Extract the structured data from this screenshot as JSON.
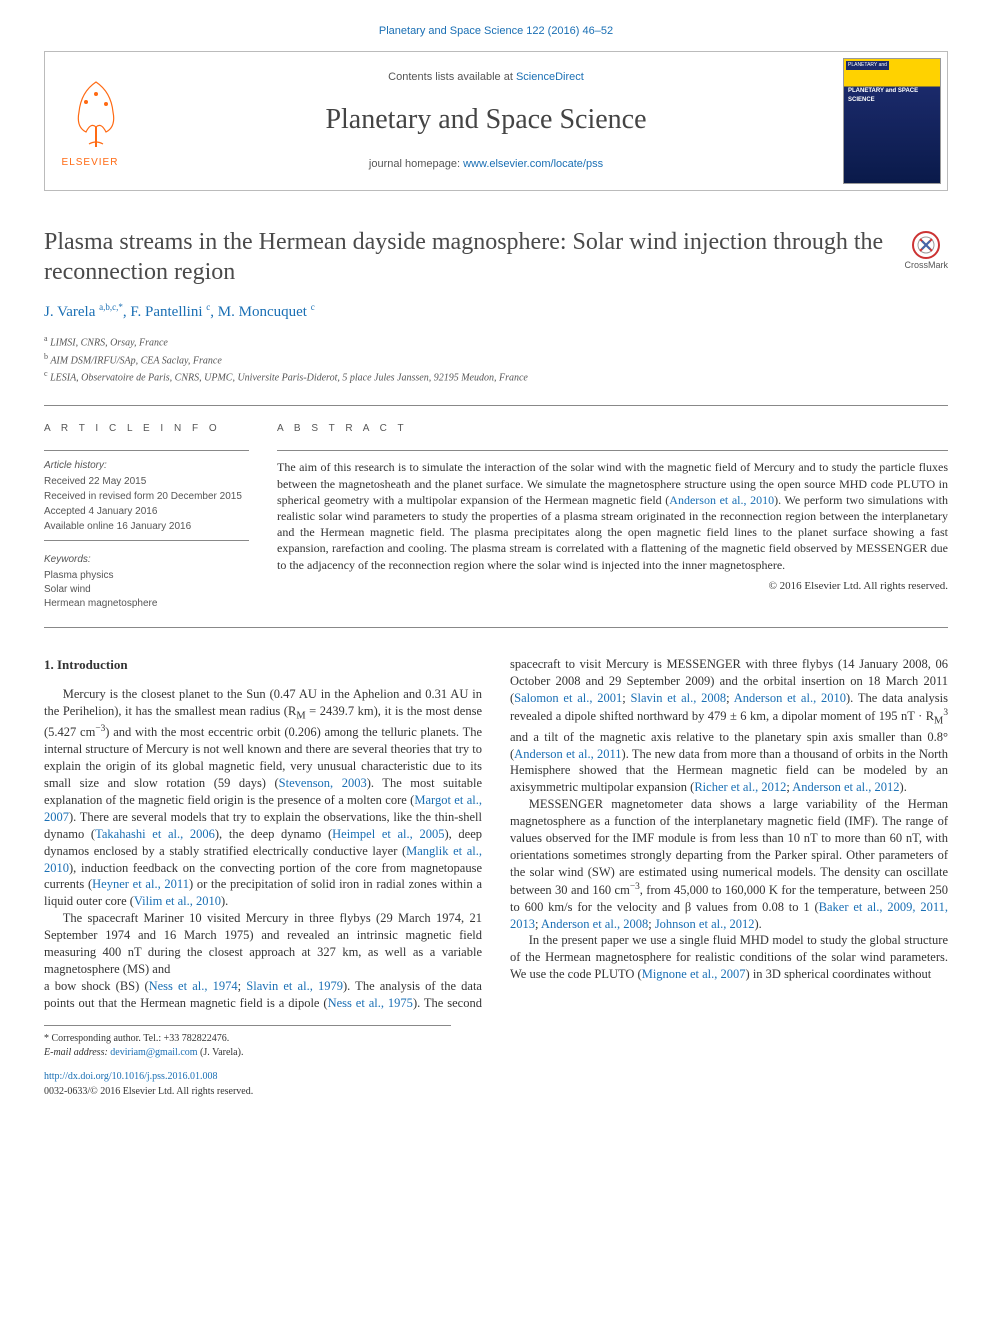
{
  "top_citation": "Planetary and Space Science 122 (2016) 46–52",
  "header": {
    "contents_prefix": "Contents lists available at ",
    "contents_link": "ScienceDirect",
    "journal_name": "Planetary and Space Science",
    "homepage_prefix": "journal homepage: ",
    "homepage_link": "www.elsevier.com/locate/pss",
    "publisher_label": "ELSEVIER",
    "cover_bar": "PLANETARY and",
    "cover_title": "PLANETARY and SPACE SCIENCE"
  },
  "crossmark_label": "CrossMark",
  "title": "Plasma streams in the Hermean dayside magnosphere: Solar wind injection through the reconnection region",
  "authors_html": "J. Varela <span class='sup'>a,b,c,*</span>, F. Pantellini <span class='sup'>c</span>, M. Moncuquet <span class='sup'>c</span>",
  "affiliations": {
    "a": "LIMSI, CNRS, Orsay, France",
    "b": "AIM DSM/IRFU/SAp, CEA Saclay, France",
    "c": "LESIA, Observatoire de Paris, CNRS, UPMC, Universite Paris-Diderot, 5 place Jules Janssen, 92195 Meudon, France"
  },
  "article_info_heading": "a r t i c l e  i n f o",
  "history": {
    "label": "Article history:",
    "received": "Received 22 May 2015",
    "revised": "Received in revised form 20 December 2015",
    "accepted": "Accepted 4 January 2016",
    "online": "Available online 16 January 2016"
  },
  "keywords": {
    "label": "Keywords:",
    "items": [
      "Plasma physics",
      "Solar wind",
      "Hermean magnetosphere"
    ]
  },
  "abstract_heading": "a b s t r a c t",
  "abstract_text": "The aim of this research is to simulate the interaction of the solar wind with the magnetic field of Mercury and to study the particle fluxes between the magnetosheath and the planet surface. We simulate the magnetosphere structure using the open source MHD code PLUTO in spherical geometry with a multipolar expansion of the Hermean magnetic field (",
  "abstract_link1": "Anderson et al., 2010",
  "abstract_text2": "). We perform two simulations with realistic solar wind parameters to study the properties of a plasma stream originated in the reconnection region between the interplanetary and the Hermean magnetic field. The plasma precipitates along the open magnetic field lines to the planet surface showing a fast expansion, rarefaction and cooling. The plasma stream is correlated with a flattening of the magnetic field observed by MESSENGER due to the adjacency of the reconnection region where the solar wind is injected into the inner magnetosphere.",
  "copyright": "© 2016 Elsevier Ltd. All rights reserved.",
  "section1_heading": "1.   Introduction",
  "para1a": "Mercury is the closest planet to the Sun (0.47 AU in the Aphelion and 0.31 AU in the Perihelion), it has the smallest mean radius (R",
  "para1a_sub": "M",
  "para1a2": " = 2439.7 km), it is the most dense (5.427 cm",
  "para1a_sup": "−3",
  "para1a3": ") and with the most eccentric orbit (0.206) among the telluric planets. The internal structure of Mercury is not well known and there are several theories that try to explain the origin of its global magnetic field, very unusual characteristic due to its small size and slow rotation (59 days) (",
  "ref_stevenson": "Stevenson, 2003",
  "para1a4": "). The most suitable explanation of the magnetic field origin is the presence of a molten core (",
  "ref_margot": "Margot et al., 2007",
  "para1a5": "). There are several models that try to explain the observations, like the thin-shell dynamo (",
  "ref_takahashi": "Takahashi et al., 2006",
  "para1a6": "), the deep dynamo (",
  "ref_heimpel": "Heimpel et al., 2005",
  "para1a7": "), deep dynamos enclosed by a stably stratified electrically conductive layer (",
  "ref_manglik": "Manglik et al., 2010",
  "para1a8": "), induction feedback on the convecting portion of the core from magnetopause currents (",
  "ref_heyner": "Heyner et al., 2011",
  "para1a9": ") or the precipitation of solid iron in radial zones within a liquid outer core (",
  "ref_vilim": "Vilim et al., 2010",
  "para1a10": ").",
  "para2": "The spacecraft Mariner 10 visited Mercury in three flybys (29 March 1974, 21 September 1974 and 16 March 1975) and revealed an intrinsic magnetic field measuring 400 nT during the closest approach at 327 km, as well as a variable magnetosphere (MS) and",
  "para3a": "a bow shock (BS) (",
  "ref_ness74": "Ness et al., 1974",
  "para3a_sep": "; ",
  "ref_slavin79": "Slavin et al., 1979",
  "para3b": "). The analysis of the data points out that the Hermean magnetic field is a dipole (",
  "ref_ness75": "Ness et al., 1975",
  "para3c": "). The second spacecraft to visit Mercury is MESSENGER with three flybys (14 January 2008, 06 October 2008 and 29 September 2009) and the orbital insertion on 18 March 2011 (",
  "ref_salomon": "Salomon et al., 2001",
  "ref_slavin08": "Slavin et al., 2008",
  "ref_anderson10": "Anderson et al., 2010",
  "para3d": "). The data analysis revealed a dipole shifted northward by 479 ± 6 km, a dipolar moment of 195 nT · R",
  "para3d_sub": "M",
  "para3d_sup": "3",
  "para3e": " and a tilt of the magnetic axis relative to the planetary spin axis smaller than 0.8° (",
  "ref_anderson11": "Anderson et al., 2011",
  "para3f": "). The new data from more than a thousand of orbits in the North Hemisphere showed that the Hermean magnetic field can be modeled by an axisymmetric multipolar expansion (",
  "ref_richer": "Richer et al., 2012",
  "ref_anderson12": "Anderson et al., 2012",
  "para3g": ").",
  "para4a": "MESSENGER magnetometer data shows a large variability of the Herman magnetosphere as a function of the interplanetary magnetic field (IMF). The range of values observed for the IMF module is from less than 10 nT to more than 60 nT, with orientations sometimes strongly departing from the Parker spiral. Other parameters of the solar wind (SW) are estimated using numerical models. The density can oscillate between 30 and 160 cm",
  "para4a_sup": "−3",
  "para4b": ", from 45,000 to 160,000 K for the temperature, between 250 to 600 km/s for the velocity and β values from 0.08 to 1 (",
  "ref_baker": "Baker et al., 2009, 2011, 2013",
  "ref_anderson08": "Anderson et al., 2008",
  "ref_johnson": "Johnson et al., 2012",
  "para4c": ").",
  "para5a": "In the present paper we use a single fluid MHD model to study the global structure of the Hermean magnetosphere for realistic conditions of the solar wind parameters. We use the code PLUTO (",
  "ref_mignone": "Mignone et al., 2007",
  "para5b": ") in 3D spherical coordinates without",
  "footnote_corr": "* Corresponding author. Tel.: +33 782822476.",
  "footnote_email_label": "E-mail address: ",
  "footnote_email": "deviriam@gmail.com",
  "footnote_email_suffix": " (J. Varela).",
  "doi": "http://dx.doi.org/10.1016/j.pss.2016.01.008",
  "issn_line": "0032-0633/© 2016 Elsevier Ltd. All rights reserved.",
  "colors": {
    "link": "#1a6fb4",
    "text": "#333333",
    "heading_gray": "#4a4a4a",
    "elsevier_orange": "#ff6a13",
    "cover_yellow": "#ffd200",
    "cover_blue": "#1b2a6b"
  }
}
